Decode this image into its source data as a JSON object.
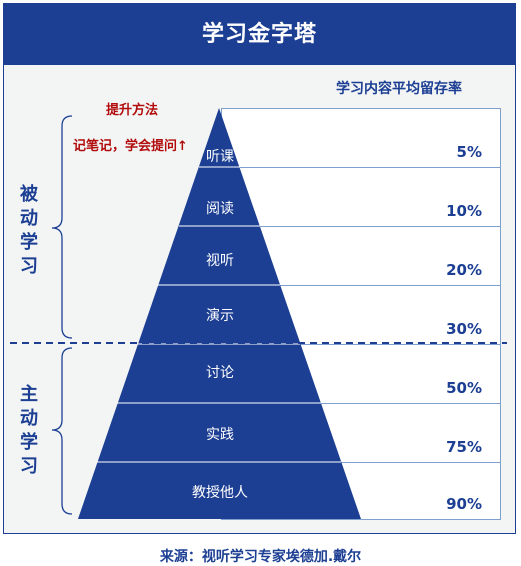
{
  "title": "学习金字塔",
  "column_title": "学习内容平均留存率",
  "method": {
    "title": "提升方法",
    "text": "记笔记，学会提问↑"
  },
  "groups": {
    "passive": "被动学习",
    "active": "主动学习"
  },
  "layers": [
    {
      "label": "听课",
      "rate": "5%"
    },
    {
      "label": "阅读",
      "rate": "10%"
    },
    {
      "label": "视听",
      "rate": "20%"
    },
    {
      "label": "演示",
      "rate": "30%"
    },
    {
      "label": "讨论",
      "rate": "50%"
    },
    {
      "label": "实践",
      "rate": "75%"
    },
    {
      "label": "教授他人",
      "rate": "90%"
    }
  ],
  "source": "来源：视听学习专家埃德加.戴尔",
  "colors": {
    "primary": "#1c3f93",
    "accent_red": "#b10b0b",
    "background": "#f3f5f5"
  }
}
